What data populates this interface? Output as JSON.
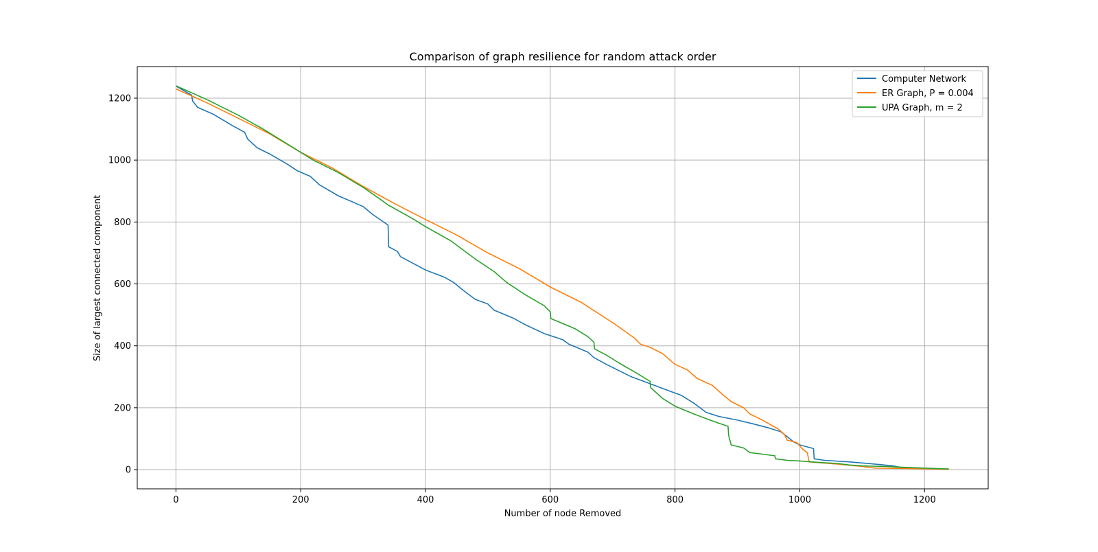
{
  "chart_data": {
    "type": "line",
    "title": "Comparison of graph resilience for random attack order",
    "xlabel": "Number of node Removed",
    "ylabel": "Size of largest connected component",
    "xlim": [
      -62,
      1302
    ],
    "ylim": [
      -62,
      1302
    ],
    "xticks": [
      0,
      200,
      400,
      600,
      800,
      1000,
      1200
    ],
    "yticks": [
      0,
      200,
      400,
      600,
      800,
      1000,
      1200
    ],
    "grid": true,
    "legend_position": "top-right",
    "series": [
      {
        "name": "Computer Network",
        "color": "#1f77b4",
        "points": [
          [
            0,
            1239
          ],
          [
            25,
            1210
          ],
          [
            27,
            1190
          ],
          [
            35,
            1170
          ],
          [
            60,
            1148
          ],
          [
            90,
            1112
          ],
          [
            110,
            1090
          ],
          [
            115,
            1068
          ],
          [
            130,
            1040
          ],
          [
            150,
            1020
          ],
          [
            180,
            985
          ],
          [
            195,
            965
          ],
          [
            215,
            948
          ],
          [
            230,
            920
          ],
          [
            260,
            885
          ],
          [
            300,
            850
          ],
          [
            315,
            825
          ],
          [
            340,
            790
          ],
          [
            341,
            720
          ],
          [
            355,
            705
          ],
          [
            360,
            688
          ],
          [
            400,
            645
          ],
          [
            430,
            622
          ],
          [
            445,
            605
          ],
          [
            460,
            580
          ],
          [
            480,
            550
          ],
          [
            500,
            535
          ],
          [
            510,
            515
          ],
          [
            540,
            490
          ],
          [
            560,
            468
          ],
          [
            590,
            440
          ],
          [
            620,
            420
          ],
          [
            630,
            405
          ],
          [
            660,
            380
          ],
          [
            670,
            362
          ],
          [
            690,
            340
          ],
          [
            730,
            300
          ],
          [
            750,
            285
          ],
          [
            790,
            255
          ],
          [
            810,
            240
          ],
          [
            830,
            215
          ],
          [
            850,
            185
          ],
          [
            870,
            172
          ],
          [
            900,
            160
          ],
          [
            925,
            148
          ],
          [
            950,
            135
          ],
          [
            970,
            122
          ],
          [
            990,
            90
          ],
          [
            1000,
            80
          ],
          [
            1022,
            68
          ],
          [
            1023,
            35
          ],
          [
            1040,
            30
          ],
          [
            1080,
            25
          ],
          [
            1120,
            18
          ],
          [
            1150,
            12
          ],
          [
            1160,
            8
          ],
          [
            1170,
            5
          ],
          [
            1239,
            1
          ]
        ]
      },
      {
        "name": "ER Graph, P = 0.004",
        "color": "#ff7f0e",
        "points": [
          [
            0,
            1230
          ],
          [
            50,
            1185
          ],
          [
            100,
            1135
          ],
          [
            150,
            1085
          ],
          [
            200,
            1025
          ],
          [
            250,
            975
          ],
          [
            300,
            915
          ],
          [
            350,
            860
          ],
          [
            400,
            808
          ],
          [
            450,
            758
          ],
          [
            500,
            700
          ],
          [
            550,
            650
          ],
          [
            600,
            590
          ],
          [
            650,
            540
          ],
          [
            700,
            475
          ],
          [
            735,
            425
          ],
          [
            745,
            405
          ],
          [
            760,
            395
          ],
          [
            780,
            375
          ],
          [
            800,
            340
          ],
          [
            820,
            322
          ],
          [
            835,
            295
          ],
          [
            860,
            272
          ],
          [
            875,
            245
          ],
          [
            890,
            220
          ],
          [
            910,
            200
          ],
          [
            920,
            180
          ],
          [
            940,
            160
          ],
          [
            965,
            132
          ],
          [
            975,
            115
          ],
          [
            980,
            95
          ],
          [
            995,
            88
          ],
          [
            1005,
            65
          ],
          [
            1012,
            55
          ],
          [
            1015,
            25
          ],
          [
            1060,
            18
          ],
          [
            1100,
            10
          ],
          [
            1120,
            5
          ],
          [
            1200,
            3
          ],
          [
            1239,
            1
          ]
        ]
      },
      {
        "name": "UPA Graph, m = 2",
        "color": "#2ca02c",
        "points": [
          [
            0,
            1240
          ],
          [
            50,
            1195
          ],
          [
            100,
            1145
          ],
          [
            140,
            1100
          ],
          [
            180,
            1050
          ],
          [
            220,
            1000
          ],
          [
            260,
            960
          ],
          [
            300,
            912
          ],
          [
            330,
            870
          ],
          [
            340,
            855
          ],
          [
            380,
            810
          ],
          [
            400,
            785
          ],
          [
            440,
            740
          ],
          [
            480,
            680
          ],
          [
            510,
            640
          ],
          [
            530,
            605
          ],
          [
            560,
            565
          ],
          [
            590,
            530
          ],
          [
            600,
            510
          ],
          [
            601,
            488
          ],
          [
            640,
            455
          ],
          [
            660,
            430
          ],
          [
            670,
            412
          ],
          [
            671,
            390
          ],
          [
            690,
            370
          ],
          [
            710,
            345
          ],
          [
            740,
            310
          ],
          [
            760,
            285
          ],
          [
            761,
            265
          ],
          [
            780,
            230
          ],
          [
            800,
            205
          ],
          [
            830,
            180
          ],
          [
            850,
            165
          ],
          [
            870,
            150
          ],
          [
            885,
            140
          ],
          [
            886,
            110
          ],
          [
            890,
            80
          ],
          [
            910,
            70
          ],
          [
            920,
            55
          ],
          [
            940,
            50
          ],
          [
            960,
            45
          ],
          [
            961,
            35
          ],
          [
            980,
            30
          ],
          [
            1000,
            28
          ],
          [
            1020,
            25
          ],
          [
            1040,
            22
          ],
          [
            1060,
            20
          ],
          [
            1080,
            15
          ],
          [
            1100,
            12
          ],
          [
            1140,
            10
          ],
          [
            1160,
            8
          ],
          [
            1200,
            5
          ],
          [
            1239,
            2
          ]
        ]
      }
    ]
  }
}
